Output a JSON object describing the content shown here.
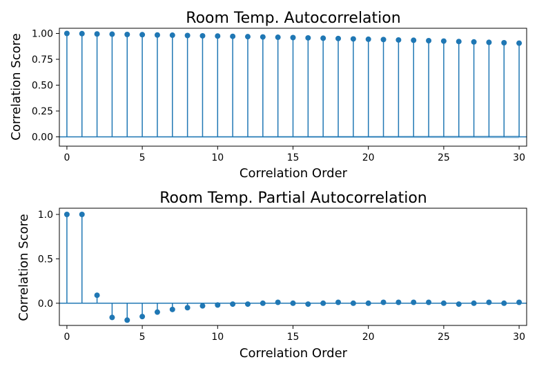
{
  "chart_data": [
    {
      "type": "stem",
      "title": "Room Temp. Autocorrelation",
      "xlabel": "Correlation Order",
      "ylabel": "Correlation Score",
      "xlim": [
        -0.5,
        30.5
      ],
      "ylim": [
        -0.09,
        1.05
      ],
      "xticks": [
        0,
        5,
        10,
        15,
        20,
        25,
        30
      ],
      "yticks": [
        0.0,
        0.25,
        0.5,
        0.75,
        1.0
      ],
      "ytick_labels": [
        "0.00",
        "0.25",
        "0.50",
        "0.75",
        "1.00"
      ],
      "confidence_band": true,
      "color": "#1f77b4",
      "band_color": "#1f77b4",
      "x": [
        0,
        1,
        2,
        3,
        4,
        5,
        6,
        7,
        8,
        9,
        10,
        11,
        12,
        13,
        14,
        15,
        16,
        17,
        18,
        19,
        20,
        21,
        22,
        23,
        24,
        25,
        26,
        27,
        28,
        29,
        30
      ],
      "values": [
        1.0,
        0.998,
        0.995,
        0.993,
        0.99,
        0.988,
        0.985,
        0.983,
        0.98,
        0.977,
        0.975,
        0.972,
        0.969,
        0.966,
        0.963,
        0.96,
        0.957,
        0.954,
        0.951,
        0.947,
        0.944,
        0.941,
        0.937,
        0.934,
        0.93,
        0.926,
        0.922,
        0.918,
        0.914,
        0.91,
        0.906
      ]
    },
    {
      "type": "stem",
      "title": "Room Temp. Partial Autocorrelation",
      "xlabel": "Correlation Order",
      "ylabel": "Correlation Score",
      "xlim": [
        -0.5,
        30.5
      ],
      "ylim": [
        -0.25,
        1.07
      ],
      "xticks": [
        0,
        5,
        10,
        15,
        20,
        25,
        30
      ],
      "yticks": [
        0.0,
        0.5,
        1.0
      ],
      "ytick_labels": [
        "0.0",
        "0.5",
        "1.0"
      ],
      "confidence_band": false,
      "color": "#1f77b4",
      "x": [
        0,
        1,
        2,
        3,
        4,
        5,
        6,
        7,
        8,
        9,
        10,
        11,
        12,
        13,
        14,
        15,
        16,
        17,
        18,
        19,
        20,
        21,
        22,
        23,
        24,
        25,
        26,
        27,
        28,
        29,
        30
      ],
      "values": [
        1.0,
        1.0,
        0.09,
        -0.16,
        -0.19,
        -0.15,
        -0.1,
        -0.07,
        -0.05,
        -0.03,
        -0.02,
        -0.01,
        -0.01,
        0.0,
        0.01,
        0.0,
        -0.01,
        0.0,
        0.01,
        0.0,
        0.0,
        0.01,
        0.01,
        0.01,
        0.01,
        0.0,
        -0.01,
        0.0,
        0.01,
        0.0,
        0.01
      ]
    }
  ]
}
